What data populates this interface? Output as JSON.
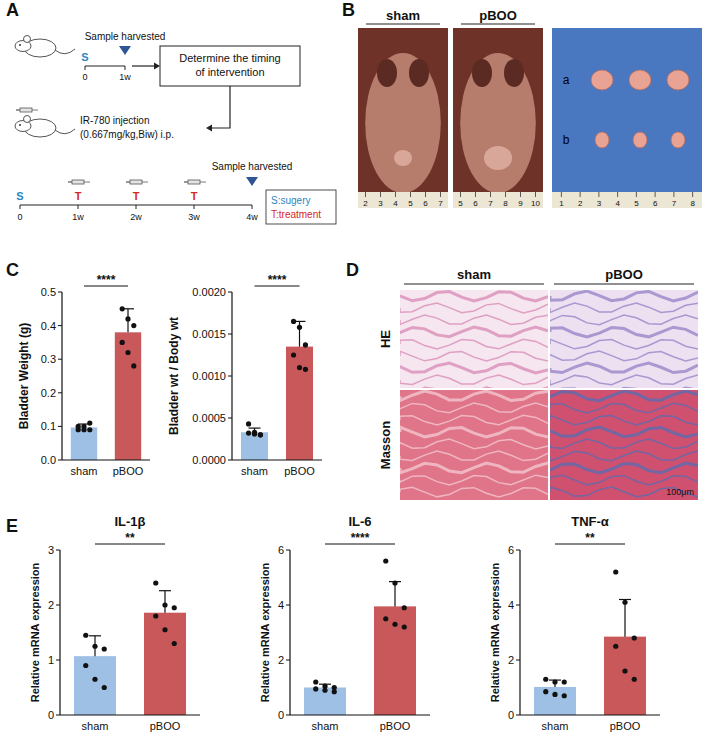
{
  "chart_data": [
    {
      "type": "bar",
      "y_label": "Bladder Weight (g)",
      "categories": [
        "sham",
        "pBOO"
      ],
      "values": [
        0.097,
        0.38
      ],
      "errors": [
        0.01,
        0.07
      ],
      "points": [
        [
          0.1,
          0.09,
          0.11,
          0.09,
          0.1,
          0.09
        ],
        [
          0.45,
          0.42,
          0.4,
          0.35,
          0.32,
          0.28
        ]
      ],
      "colors": [
        "#9dc0e4",
        "#c9585b"
      ],
      "ylim": [
        0,
        0.5
      ],
      "yticks": [
        {
          "value": 0,
          "label": "0.0"
        },
        0.1,
        0.2,
        0.3,
        0.4,
        0.5
      ],
      "annotations": [
        "****"
      ],
      "grid": false
    },
    {
      "type": "bar",
      "y_label": "Bladder wt / Body wt",
      "categories": [
        "sham",
        "pBOO"
      ],
      "values": [
        0.00033,
        0.00135
      ],
      "errors": [
        5e-05,
        0.0003
      ],
      "points": [
        [
          0.00043,
          0.00033,
          0.0003,
          0.00032,
          0.00031,
          0.0003
        ],
        [
          0.00165,
          0.00158,
          0.00137,
          0.00125,
          0.0011,
          0.00108
        ]
      ],
      "colors": [
        "#9dc0e4",
        "#c9585b"
      ],
      "ylim": [
        0,
        0.002
      ],
      "yticks": [
        {
          "value": 0,
          "label": "0.0000"
        },
        {
          "value": 0.0005,
          "label": "0.0005"
        },
        {
          "value": 0.001,
          "label": "0.0010"
        },
        {
          "value": 0.0015,
          "label": "0.0015"
        },
        {
          "value": 0.002,
          "label": "0.0020"
        }
      ],
      "annotations": [
        "****"
      ],
      "grid": false
    },
    {
      "type": "bar",
      "title": "IL-1β",
      "y_label": "Relative mRNA expression",
      "categories": [
        "sham",
        "pBOO"
      ],
      "values": [
        1.07,
        1.86
      ],
      "errors": [
        0.37,
        0.4
      ],
      "points": [
        [
          1.45,
          1.25,
          1.2,
          0.9,
          0.65,
          0.5
        ],
        [
          2.4,
          2.0,
          1.95,
          1.8,
          1.55,
          1.3
        ]
      ],
      "colors": [
        "#9dc0e4",
        "#c9585b"
      ],
      "ylim": [
        0,
        3
      ],
      "yticks": [
        0,
        1,
        2,
        3
      ],
      "annotations": [
        "**"
      ],
      "grid": false
    },
    {
      "type": "bar",
      "title": "IL-6",
      "y_label": "Relative mRNA expression",
      "categories": [
        "sham",
        "pBOO"
      ],
      "values": [
        1.0,
        3.95
      ],
      "errors": [
        0.12,
        0.9
      ],
      "points": [
        [
          1.2,
          1.05,
          1.0,
          0.95,
          0.9,
          0.85
        ],
        [
          5.6,
          4.8,
          3.9,
          3.5,
          3.3,
          3.2
        ]
      ],
      "colors": [
        "#9dc0e4",
        "#c9585b"
      ],
      "ylim": [
        0,
        6
      ],
      "yticks": [
        0,
        2,
        4,
        6
      ],
      "annotations": [
        "****"
      ],
      "grid": false
    },
    {
      "type": "bar",
      "title": "TNF-α",
      "y_label": "Relative mRNA expression",
      "categories": [
        "sham",
        "pBOO"
      ],
      "values": [
        1.02,
        2.85
      ],
      "errors": [
        0.25,
        1.35
      ],
      "points": [
        [
          1.3,
          1.2,
          1.2,
          0.85,
          0.75,
          0.7
        ],
        [
          5.2,
          4.1,
          2.8,
          2.5,
          1.6,
          1.3
        ]
      ],
      "colors": [
        "#9dc0e4",
        "#c9585b"
      ],
      "ylim": [
        0,
        6
      ],
      "yticks": [
        0,
        2,
        4,
        6
      ],
      "annotations": [
        "**"
      ],
      "grid": false
    }
  ],
  "figure": {
    "panel_letters": [
      "A",
      "B",
      "C",
      "D",
      "E"
    ],
    "schematic": {
      "timeline1": {
        "start": "S",
        "ticks": [
          "0",
          "1w"
        ],
        "harvest": "Sample harvested"
      },
      "decision_box": "Determine the timing of intervention",
      "injection": [
        "IR-780 injection",
        "(0.667mg/kg,Biw) i.p."
      ],
      "timeline2": {
        "ticks": [
          "0",
          "1w",
          "2w",
          "3w",
          "4w"
        ],
        "events": [
          "S",
          "T",
          "T",
          "T"
        ],
        "harvest": "Sample harvested"
      },
      "key": [
        "S:sugery",
        "T:treatment"
      ]
    },
    "photos": {
      "labels": [
        "sham",
        "pBOO"
      ],
      "rulers": [
        [
          "2",
          "3",
          "4",
          "5",
          "6",
          "7"
        ],
        [
          "5",
          "6",
          "7",
          "8",
          "9",
          "10"
        ],
        [
          "1",
          "2",
          "3",
          "4",
          "5",
          "6",
          "7",
          "8"
        ]
      ],
      "rows": [
        "a",
        "b"
      ]
    },
    "histology": {
      "columns": [
        "sham",
        "pBOO"
      ],
      "rows": [
        "HE",
        "Masson"
      ],
      "scale_bar": "100μm"
    }
  }
}
